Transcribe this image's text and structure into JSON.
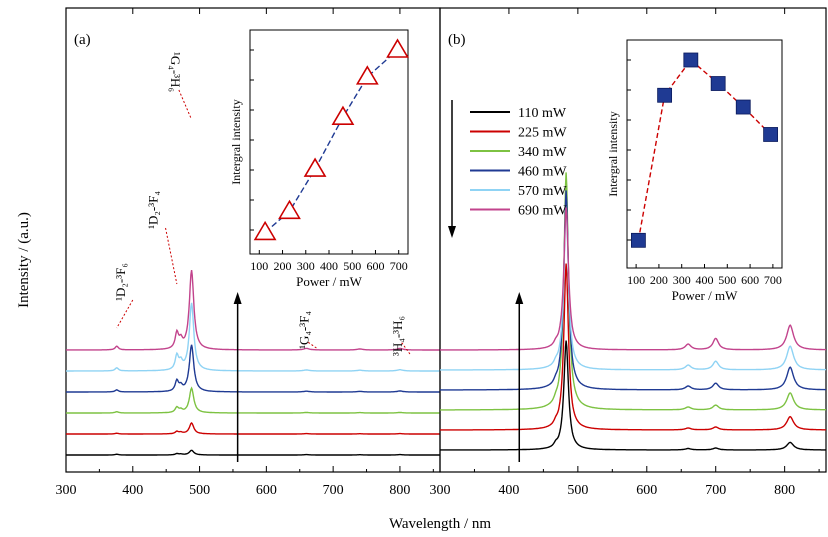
{
  "figure": {
    "ylabel": "Intensity / (a.u.)",
    "xlabel": "Wavelength / nm"
  },
  "chart_data": [
    {
      "type": "line",
      "panel_label": "(a)",
      "xlim": [
        300,
        860
      ],
      "x_ticks": [
        300,
        400,
        500,
        600,
        700,
        800
      ],
      "xlabel": "Wavelength / nm",
      "ylabel": "Intensity / (a.u.)",
      "y_tick_labels": false,
      "legend": "none",
      "arrow_direction": "up",
      "arrow_x": 557,
      "annotations": [
        {
          "text": "¹G₄-³H₆",
          "x": 487
        },
        {
          "text": "¹D₂-³F₄",
          "x": 464
        },
        {
          "text": "¹D₂-³F₆",
          "x": 376
        },
        {
          "text": "¹G₄-³F₄",
          "x": 660
        },
        {
          "text": "³H₄-³H₆",
          "x": 800
        }
      ],
      "peaks_nm": [
        376,
        466,
        472,
        488,
        660,
        740,
        800
      ],
      "series": [
        {
          "name": "110 mW",
          "color": "#000000",
          "offset": 0,
          "peak_heights": [
            3,
            5,
            3,
            18,
            1.5,
            1,
            1.5
          ]
        },
        {
          "name": "225 mW",
          "color": "#cc0000",
          "offset": 1,
          "peak_heights": [
            3,
            9,
            5,
            42,
            1.5,
            1,
            1.5
          ]
        },
        {
          "name": "340 mW",
          "color": "#7dc242",
          "offset": 2,
          "peak_heights": [
            5,
            20,
            10,
            95,
            2,
            1.5,
            2
          ]
        },
        {
          "name": "460 mW",
          "color": "#1f3a93",
          "offset": 3,
          "peak_heights": [
            8,
            40,
            18,
            180,
            3,
            2.5,
            4
          ]
        },
        {
          "name": "570 mW",
          "color": "#8fd3f4",
          "offset": 4,
          "peak_heights": [
            12,
            55,
            28,
            260,
            4,
            3,
            5
          ]
        },
        {
          "name": "690 mW",
          "color": "#c2438c",
          "offset": 5,
          "peak_heights": [
            14,
            60,
            30,
            305,
            6,
            4,
            6
          ]
        }
      ],
      "inset": {
        "type": "line",
        "xlabel": "Power / mW",
        "ylabel": "Intergral intensity",
        "x_ticks": [
          100,
          200,
          300,
          400,
          500,
          600,
          700
        ],
        "xlim": [
          60,
          740
        ],
        "y_tick_labels": false,
        "marker": "open-triangle",
        "marker_color": "#cc0000",
        "line_color": "#1f3a93",
        "x": [
          125,
          230,
          340,
          460,
          565,
          695
        ],
        "values": [
          0.05,
          0.16,
          0.38,
          0.65,
          0.86,
          1.0
        ]
      }
    },
    {
      "type": "line",
      "panel_label": "(b)",
      "xlim": [
        300,
        860
      ],
      "x_ticks": [
        300,
        400,
        500,
        600,
        700,
        800
      ],
      "xlabel": "Wavelength / nm",
      "y_tick_labels": false,
      "legend": "top-left",
      "arrow_direction": "up",
      "arrow_x": 415,
      "legend_arrow": "down",
      "peaks_nm": [
        468,
        483,
        660,
        700,
        808
      ],
      "series": [
        {
          "name": "110 mW",
          "color": "#000000",
          "offset": 0,
          "peak_heights": [
            3,
            115,
            1.5,
            2,
            8
          ]
        },
        {
          "name": "225 mW",
          "color": "#cc0000",
          "offset": 1,
          "peak_heights": [
            3,
            175,
            2,
            3,
            14
          ]
        },
        {
          "name": "340 mW",
          "color": "#7dc242",
          "offset": 2,
          "peak_heights": [
            3,
            250,
            3,
            5,
            18
          ]
        },
        {
          "name": "460 mW",
          "color": "#1f3a93",
          "offset": 3,
          "peak_heights": [
            3,
            210,
            4,
            7,
            24
          ]
        },
        {
          "name": "570 mW",
          "color": "#8fd3f4",
          "offset": 4,
          "peak_heights": [
            3,
            170,
            5,
            9,
            25
          ]
        },
        {
          "name": "690 mW",
          "color": "#c2438c",
          "offset": 5,
          "peak_heights": [
            3,
            150,
            6,
            12,
            26
          ]
        }
      ],
      "inset": {
        "type": "line",
        "xlabel": "Power / mW",
        "ylabel": "Intergral intensity",
        "x_ticks": [
          100,
          200,
          300,
          400,
          500,
          600,
          700
        ],
        "xlim": [
          60,
          740
        ],
        "y_tick_labels": false,
        "marker": "filled-square",
        "marker_color": "#1f3a93",
        "line_color": "#cc0000",
        "x": [
          110,
          225,
          340,
          460,
          570,
          690
        ],
        "values": [
          0.08,
          0.82,
          1.0,
          0.88,
          0.76,
          0.62
        ]
      }
    }
  ]
}
